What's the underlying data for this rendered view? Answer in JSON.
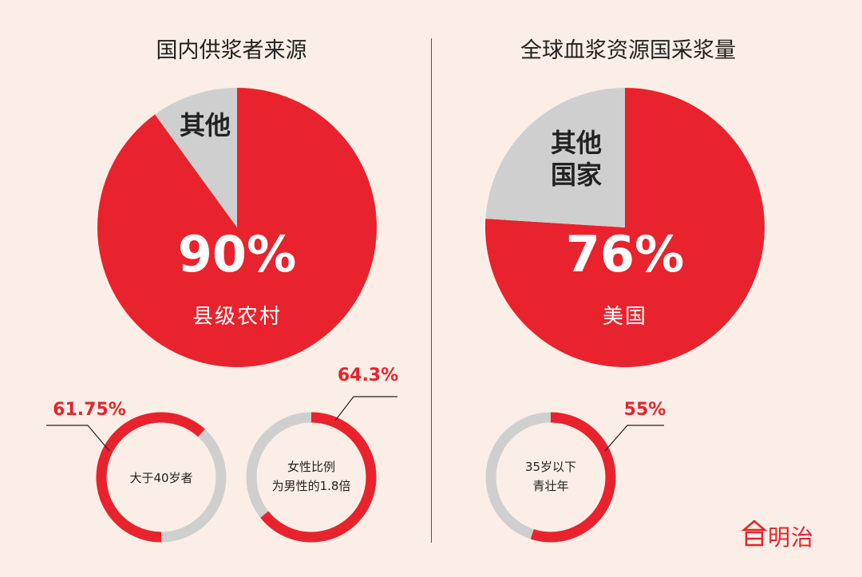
{
  "colors": {
    "red": "#e8232d",
    "gray": "#cfcfcf",
    "background": "#fbeee6",
    "dark": "#222222",
    "white": "#ffffff"
  },
  "panels": {
    "left": {
      "title": "国内供浆者来源"
    },
    "right": {
      "title": "全球血浆资源国采浆量"
    }
  },
  "logo": {
    "text": "明治"
  },
  "chart_data": [
    {
      "type": "pie",
      "title": "国内供浆者来源",
      "slices": [
        {
          "label": "县级农村",
          "value": 90,
          "value_label": "90%",
          "color": "#e8232d"
        },
        {
          "label": "其他",
          "value": 10,
          "color": "#cfcfcf"
        }
      ]
    },
    {
      "type": "pie",
      "title": "全球血浆资源国采浆量",
      "slices": [
        {
          "label": "美国",
          "value": 76,
          "value_label": "76%",
          "color": "#e8232d"
        },
        {
          "label": "其他 国家",
          "value": 24,
          "color": "#cfcfcf"
        }
      ]
    },
    {
      "type": "donut",
      "center_label": [
        "大于40岁者"
      ],
      "value": 61.75,
      "value_label": "61.75%",
      "color": "#e8232d"
    },
    {
      "type": "donut",
      "center_label": [
        "女性比例",
        "为男性的1.8倍"
      ],
      "value": 64.3,
      "value_label": "64.3%",
      "color": "#e8232d"
    },
    {
      "type": "donut",
      "center_label": [
        "35岁以下",
        "青壮年"
      ],
      "value": 55,
      "value_label": "55%",
      "color": "#e8232d"
    }
  ]
}
